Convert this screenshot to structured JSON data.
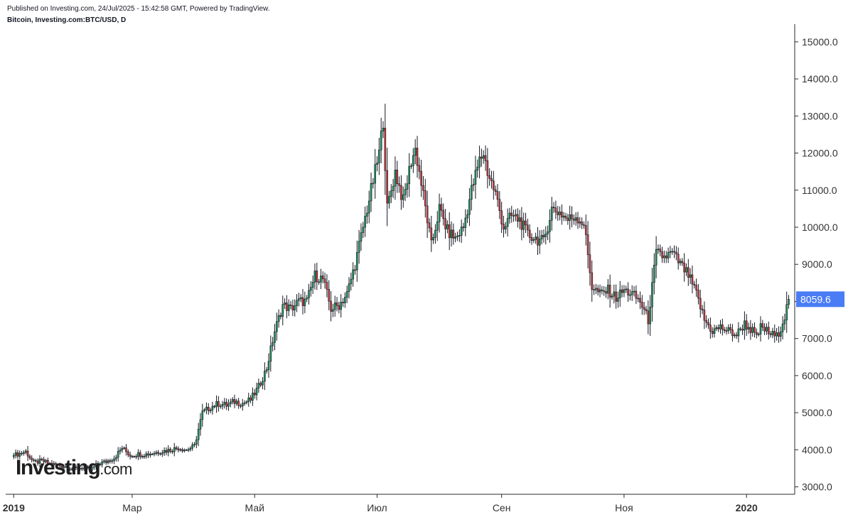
{
  "header": {
    "published": "Published on Investing.com, 24/Jul/2025 - 15:42:58 GMT, Powered by TradingView.",
    "symbol": "Bitcoin, Investing.com:BTC/USD, D"
  },
  "logo": {
    "main": "Investing",
    "suffix": ".com"
  },
  "colors": {
    "up": "#1e9e5a",
    "down": "#d93a3a",
    "wick": "#131722",
    "price_tag": "#4a7cf5",
    "axis": "#555555"
  },
  "chart_data": {
    "type": "candlestick",
    "title": "Bitcoin, Investing.com:BTC/USD, D",
    "ylim": [
      2800,
      15400
    ],
    "y_ticks": [
      "3000.0",
      "4000.0",
      "5000.0",
      "6000.0",
      "7000.0",
      "8000.0",
      "9000.0",
      "10000.0",
      "11000.0",
      "12000.0",
      "13000.0",
      "14000.0",
      "15000.0"
    ],
    "y_tick_values": [
      3000,
      4000,
      5000,
      6000,
      7000,
      8000,
      9000,
      10000,
      11000,
      12000,
      13000,
      14000,
      15000
    ],
    "x_ticks": [
      {
        "label": "2019",
        "day": 0,
        "bold": true
      },
      {
        "label": "Мар",
        "day": 59,
        "bold": false
      },
      {
        "label": "Май",
        "day": 120,
        "bold": false
      },
      {
        "label": "Июл",
        "day": 181,
        "bold": false
      },
      {
        "label": "Сен",
        "day": 243,
        "bold": false
      },
      {
        "label": "Ноя",
        "day": 304,
        "bold": false
      },
      {
        "label": "2020",
        "day": 365,
        "bold": true
      }
    ],
    "last_price": 8059.6,
    "last_price_label": "8059.6",
    "closes": [
      [
        0,
        3850
      ],
      [
        6,
        3950
      ],
      [
        10,
        3650
      ],
      [
        14,
        3700
      ],
      [
        18,
        3620
      ],
      [
        22,
        3580
      ],
      [
        26,
        3550
      ],
      [
        30,
        3480
      ],
      [
        34,
        3520
      ],
      [
        38,
        3450
      ],
      [
        42,
        3620
      ],
      [
        46,
        3680
      ],
      [
        50,
        3780
      ],
      [
        54,
        4050
      ],
      [
        58,
        3850
      ],
      [
        62,
        3880
      ],
      [
        66,
        3880
      ],
      [
        70,
        3920
      ],
      [
        74,
        3960
      ],
      [
        78,
        4000
      ],
      [
        82,
        4050
      ],
      [
        86,
        4000
      ],
      [
        90,
        4100
      ],
      [
        94,
        5000
      ],
      [
        98,
        5150
      ],
      [
        102,
        5250
      ],
      [
        106,
        5200
      ],
      [
        110,
        5300
      ],
      [
        114,
        5250
      ],
      [
        118,
        5350
      ],
      [
        122,
        5700
      ],
      [
        126,
        6200
      ],
      [
        130,
        7200
      ],
      [
        134,
        7900
      ],
      [
        138,
        7800
      ],
      [
        142,
        8000
      ],
      [
        146,
        8000
      ],
      [
        150,
        8700
      ],
      [
        154,
        8600
      ],
      [
        158,
        7800
      ],
      [
        162,
        7900
      ],
      [
        166,
        8200
      ],
      [
        170,
        9000
      ],
      [
        174,
        10000
      ],
      [
        178,
        11000
      ],
      [
        182,
        12000
      ],
      [
        184,
        12900
      ],
      [
        186,
        10500
      ],
      [
        190,
        11500
      ],
      [
        194,
        10700
      ],
      [
        198,
        11800
      ],
      [
        200,
        12100
      ],
      [
        202,
        11500
      ],
      [
        206,
        10200
      ],
      [
        208,
        9500
      ],
      [
        212,
        10500
      ],
      [
        216,
        9900
      ],
      [
        220,
        9700
      ],
      [
        224,
        10000
      ],
      [
        228,
        11000
      ],
      [
        232,
        11800
      ],
      [
        234,
        12000
      ],
      [
        236,
        11500
      ],
      [
        240,
        10900
      ],
      [
        244,
        10000
      ],
      [
        248,
        10300
      ],
      [
        252,
        10200
      ],
      [
        256,
        9800
      ],
      [
        260,
        9700
      ],
      [
        264,
        9600
      ],
      [
        268,
        10500
      ],
      [
        272,
        10400
      ],
      [
        276,
        10200
      ],
      [
        280,
        10300
      ],
      [
        284,
        10100
      ],
      [
        288,
        8400
      ],
      [
        292,
        8200
      ],
      [
        296,
        8300
      ],
      [
        300,
        8100
      ],
      [
        304,
        8300
      ],
      [
        308,
        8200
      ],
      [
        312,
        8000
      ],
      [
        316,
        7500
      ],
      [
        320,
        9300
      ],
      [
        324,
        9200
      ],
      [
        328,
        9300
      ],
      [
        332,
        9000
      ],
      [
        336,
        8700
      ],
      [
        340,
        8200
      ],
      [
        344,
        7500
      ],
      [
        348,
        7200
      ],
      [
        352,
        7300
      ],
      [
        356,
        7200
      ],
      [
        360,
        7100
      ],
      [
        364,
        7400
      ],
      [
        368,
        7200
      ],
      [
        370,
        7000
      ],
      [
        372,
        7300
      ],
      [
        374,
        7250
      ],
      [
        376,
        7150
      ],
      [
        378,
        7100
      ],
      [
        380,
        7050
      ],
      [
        382,
        7300
      ],
      [
        384,
        7600
      ],
      [
        386,
        8059.6
      ]
    ]
  }
}
